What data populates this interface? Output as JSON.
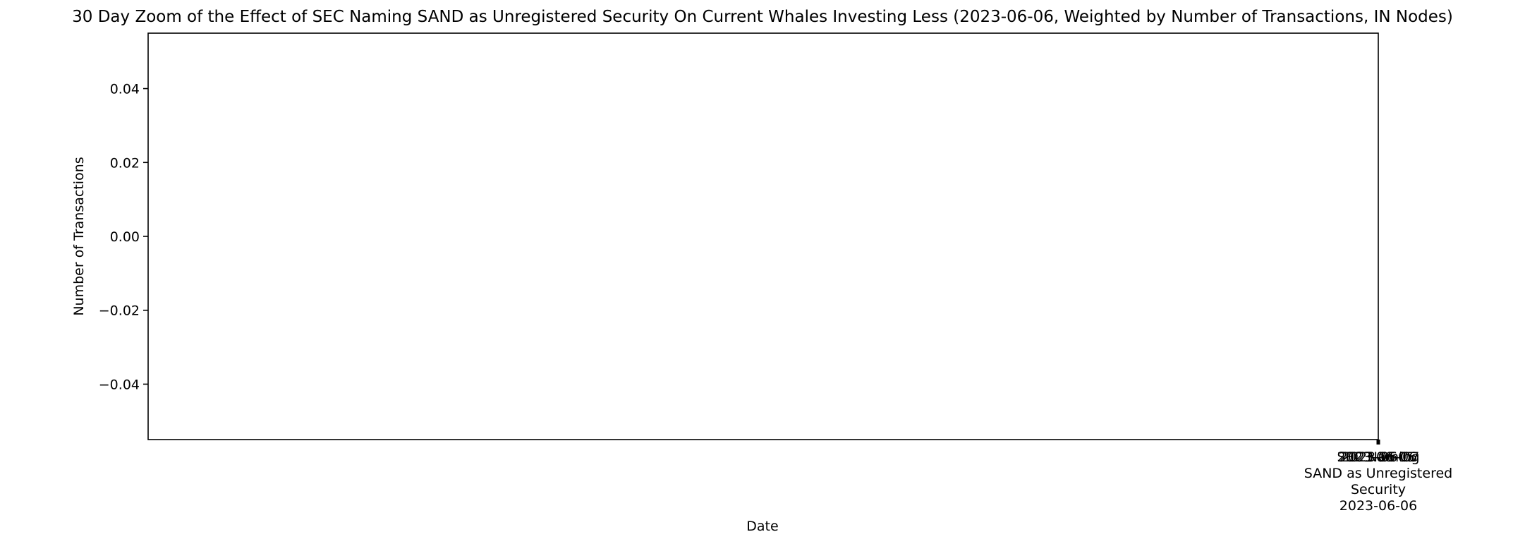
{
  "chart_data": {
    "type": "line",
    "title": "30 Day Zoom of the Effect of SEC Naming SAND as Unregistered Security On Current Whales Investing Less (2023-06-06, Weighted by Number of Transactions, IN Nodes)",
    "xlabel": "Date",
    "ylabel": "Number of Transactions",
    "ylim": [
      -0.055,
      0.055
    ],
    "yticks": [
      {
        "value": -0.04,
        "label": "−0.04"
      },
      {
        "value": -0.02,
        "label": "−0.02"
      },
      {
        "value": 0.0,
        "label": "0.00"
      },
      {
        "value": 0.02,
        "label": "0.02"
      },
      {
        "value": 0.04,
        "label": "0.04"
      }
    ],
    "xticks_overlapping": [
      "2023-06-05",
      "2023-06-06",
      "2023-06-07"
    ],
    "event_label": [
      "SEC Naming",
      "SAND as Unregistered",
      "Security",
      "2023-06-06"
    ],
    "series": [],
    "grid": false,
    "legend": "none",
    "colors": {
      "axis": "#000000",
      "background": "#ffffff"
    }
  }
}
